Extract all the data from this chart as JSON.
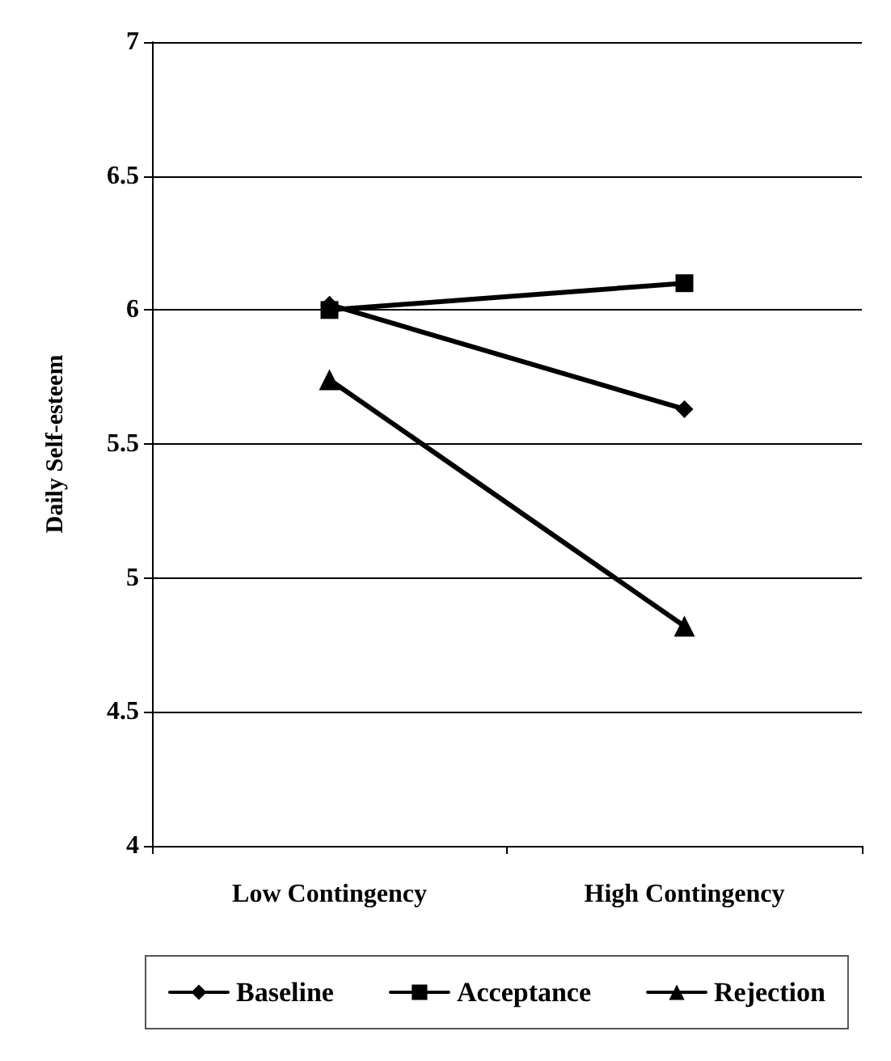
{
  "chart_data": {
    "type": "line",
    "ylabel": "Daily Self-esteem",
    "categories": [
      "Low Contingency",
      "High Contingency"
    ],
    "series": [
      {
        "name": "Baseline",
        "color": "#000000",
        "marker": "diamond",
        "values": [
          6.02,
          5.63
        ]
      },
      {
        "name": "Acceptance",
        "color": "#000000",
        "marker": "square",
        "values": [
          6.0,
          6.1
        ]
      },
      {
        "name": "Rejection",
        "color": "#000000",
        "marker": "triangle",
        "values": [
          5.74,
          4.82
        ]
      }
    ],
    "ylim": [
      4,
      7
    ],
    "yticks": [
      4,
      4.5,
      5,
      5.5,
      6,
      6.5,
      7
    ],
    "grid": "y",
    "legend": "bottom",
    "line_style": "solid"
  }
}
